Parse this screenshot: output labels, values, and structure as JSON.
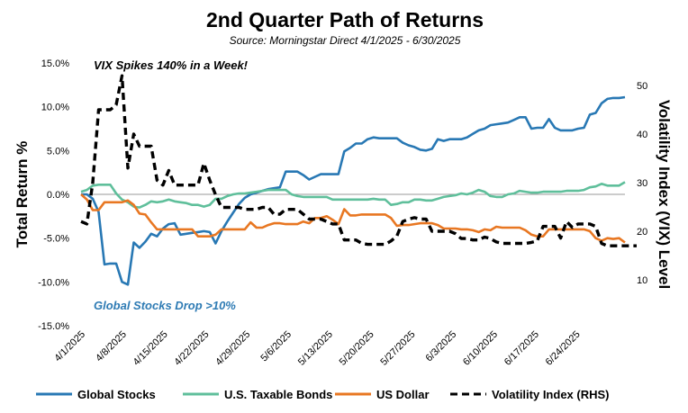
{
  "chart_data": {
    "type": "line",
    "title": "2nd Quarter Path of Returns",
    "subtitle": "Source: Morningstar Direct 4/1/2025 - 6/30/2025",
    "ylabel": "Total Return %",
    "y2label": "Volatility Index (VIX) Level",
    "ylim": [
      -15,
      15
    ],
    "y2lim": [
      0,
      50
    ],
    "y_ticks": [
      "15.0%",
      "10.0%",
      "5.0%",
      "0.0%",
      "-5.0%",
      "-10.0%",
      "-15.0%"
    ],
    "y2_ticks": [
      "50",
      "40",
      "30",
      "20",
      "10"
    ],
    "x_ticks": [
      "4/1/2025",
      "4/8/2025",
      "4/15/2025",
      "4/22/2025",
      "4/29/2025",
      "5/6/2025",
      "5/13/2025",
      "5/20/2025",
      "5/27/2025",
      "6/3/2025",
      "6/10/2025",
      "6/17/2025",
      "6/24/2025"
    ],
    "legend_position": "bottom",
    "annotations": [
      {
        "text": "VIX Spikes 140% in a Week!",
        "color": "#000000"
      },
      {
        "text": "Global Stocks Drop >10%",
        "color": "#2E7BB4"
      }
    ],
    "series": [
      {
        "name": "Global Stocks",
        "axis": "left",
        "color": "#2878B4",
        "dash": false,
        "values": [
          0,
          0,
          -0.5,
          -2,
          -8,
          -7.9,
          -7.9,
          -10,
          -10.3,
          -5.5,
          -6.1,
          -5.4,
          -4.5,
          -4.8,
          -3.9,
          -3.4,
          -3.3,
          -4.6,
          -4.5,
          -4.4,
          -4.3,
          -4.2,
          -4.3,
          -5.6,
          -4.2,
          -3.1,
          -2.1,
          -1.1,
          -0.4,
          0,
          0.2,
          0.4,
          0.6,
          0.7,
          0.8,
          2.6,
          2.6,
          2.6,
          2.2,
          1.7,
          2,
          2.3,
          2.3,
          2.3,
          2.3,
          4.9,
          5.3,
          5.8,
          5.8,
          6.3,
          6.5,
          6.4,
          6.4,
          6.4,
          6.4,
          5.9,
          5.6,
          5.4,
          5.1,
          5,
          5.2,
          6.3,
          6.1,
          6.3,
          6.3,
          6.3,
          6.5,
          6.9,
          7.3,
          7.5,
          7.9,
          8,
          8.1,
          8.2,
          8.5,
          8.8,
          8.8,
          7.5,
          7.6,
          7.6,
          8.6,
          7.6,
          7.3,
          7.3,
          7.3,
          7.5,
          7.6,
          9.1,
          9.3,
          10.4,
          10.9,
          11,
          11,
          11.1
        ]
      },
      {
        "name": "U.S. Taxable Bonds",
        "axis": "left",
        "color": "#5FBF9B",
        "dash": false,
        "values": [
          0.3,
          0.5,
          1,
          1.1,
          1.1,
          1.1,
          0.1,
          -0.6,
          -0.9,
          -1.4,
          -1.5,
          -1.2,
          -0.8,
          -0.9,
          -0.8,
          -0.6,
          -0.8,
          -0.9,
          -1,
          -1.2,
          -1.2,
          -1.4,
          -1.2,
          -0.5,
          -0.5,
          -0.2,
          0,
          0.1,
          0.1,
          0.2,
          0.3,
          0.4,
          0.5,
          0.5,
          0.5,
          0.5,
          0,
          -0.2,
          -0.3,
          -0.3,
          -0.3,
          -0.3,
          -0.3,
          -0.6,
          -0.6,
          -0.6,
          -0.6,
          -0.6,
          -0.6,
          -0.6,
          -0.5,
          -0.6,
          -0.6,
          -1.2,
          -1.1,
          -0.9,
          -0.9,
          -0.6,
          -0.6,
          -0.7,
          -0.7,
          -0.5,
          -0.3,
          -0.2,
          -0.1,
          0.1,
          0,
          0.2,
          0.5,
          0.3,
          -0.2,
          -0.3,
          -0.3,
          0,
          0.1,
          0.4,
          0.3,
          0.2,
          0.2,
          0.3,
          0.3,
          0.3,
          0.3,
          0.4,
          0.4,
          0.4,
          0.5,
          0.8,
          0.9,
          1.2,
          1,
          1,
          1,
          1.4
        ]
      },
      {
        "name": "US Dollar",
        "axis": "left",
        "color": "#E87722",
        "dash": false,
        "values": [
          0,
          -0.6,
          -1.8,
          -1.8,
          -0.9,
          -0.9,
          -0.9,
          -0.9,
          -0.7,
          -1.2,
          -2.2,
          -2.3,
          -3.2,
          -4,
          -4,
          -4,
          -4,
          -4,
          -4,
          -4,
          -4.8,
          -4.8,
          -4.8,
          -4.6,
          -4,
          -4,
          -4,
          -4,
          -4,
          -3.2,
          -3.8,
          -3.8,
          -3.5,
          -3.3,
          -3.3,
          -3.4,
          -3.4,
          -3.4,
          -3.1,
          -3.3,
          -2.7,
          -2.7,
          -2.5,
          -2.9,
          -3.4,
          -1.7,
          -2.4,
          -2.4,
          -2.3,
          -2.3,
          -2.3,
          -2.3,
          -2.3,
          -2.7,
          -3.6,
          -3.5,
          -3.5,
          -3.4,
          -3.3,
          -3.3,
          -3.3,
          -3.5,
          -3.9,
          -3.9,
          -3.9,
          -4,
          -4,
          -4.1,
          -4.3,
          -4,
          -4.1,
          -3.7,
          -3.8,
          -3.8,
          -3.8,
          -3.8,
          -4.1,
          -4.6,
          -4.8,
          -4.8,
          -4,
          -4,
          -4,
          -4,
          -4,
          -4,
          -4,
          -4.2,
          -5,
          -5.3,
          -5,
          -5.1,
          -5,
          -5.5
        ]
      },
      {
        "name": "Volatility Index (RHS)",
        "axis": "right",
        "color": "#000000",
        "dash": true,
        "values": [
          22,
          21.5,
          30,
          45,
          45,
          45,
          46,
          52,
          33,
          40,
          37.5,
          37.5,
          37.5,
          30.5,
          29.5,
          32.5,
          29.5,
          29.5,
          29.5,
          29.5,
          29.5,
          34,
          30.5,
          27.5,
          24.9,
          24.9,
          24.9,
          24.9,
          24.5,
          24.5,
          24.5,
          24.9,
          24.9,
          23.5,
          23.5,
          24.5,
          24.5,
          24.5,
          23.5,
          22.5,
          22.5,
          22.5,
          22,
          21.5,
          21.5,
          18.2,
          18.2,
          18.2,
          17.5,
          17.3,
          17.3,
          17.3,
          17.3,
          18,
          19,
          22,
          22.5,
          22.8,
          22.5,
          22.5,
          20,
          20,
          20,
          20,
          19.5,
          18.5,
          18.5,
          18.2,
          18.2,
          18.8,
          18.5,
          17.8,
          17.5,
          17.5,
          17.5,
          17.5,
          17.5,
          17.7,
          18,
          21,
          21,
          21,
          18.6,
          22,
          20.8,
          21.5,
          21.5,
          21.5,
          21,
          17.5,
          17,
          17,
          17,
          17,
          17,
          17
        ]
      }
    ]
  }
}
